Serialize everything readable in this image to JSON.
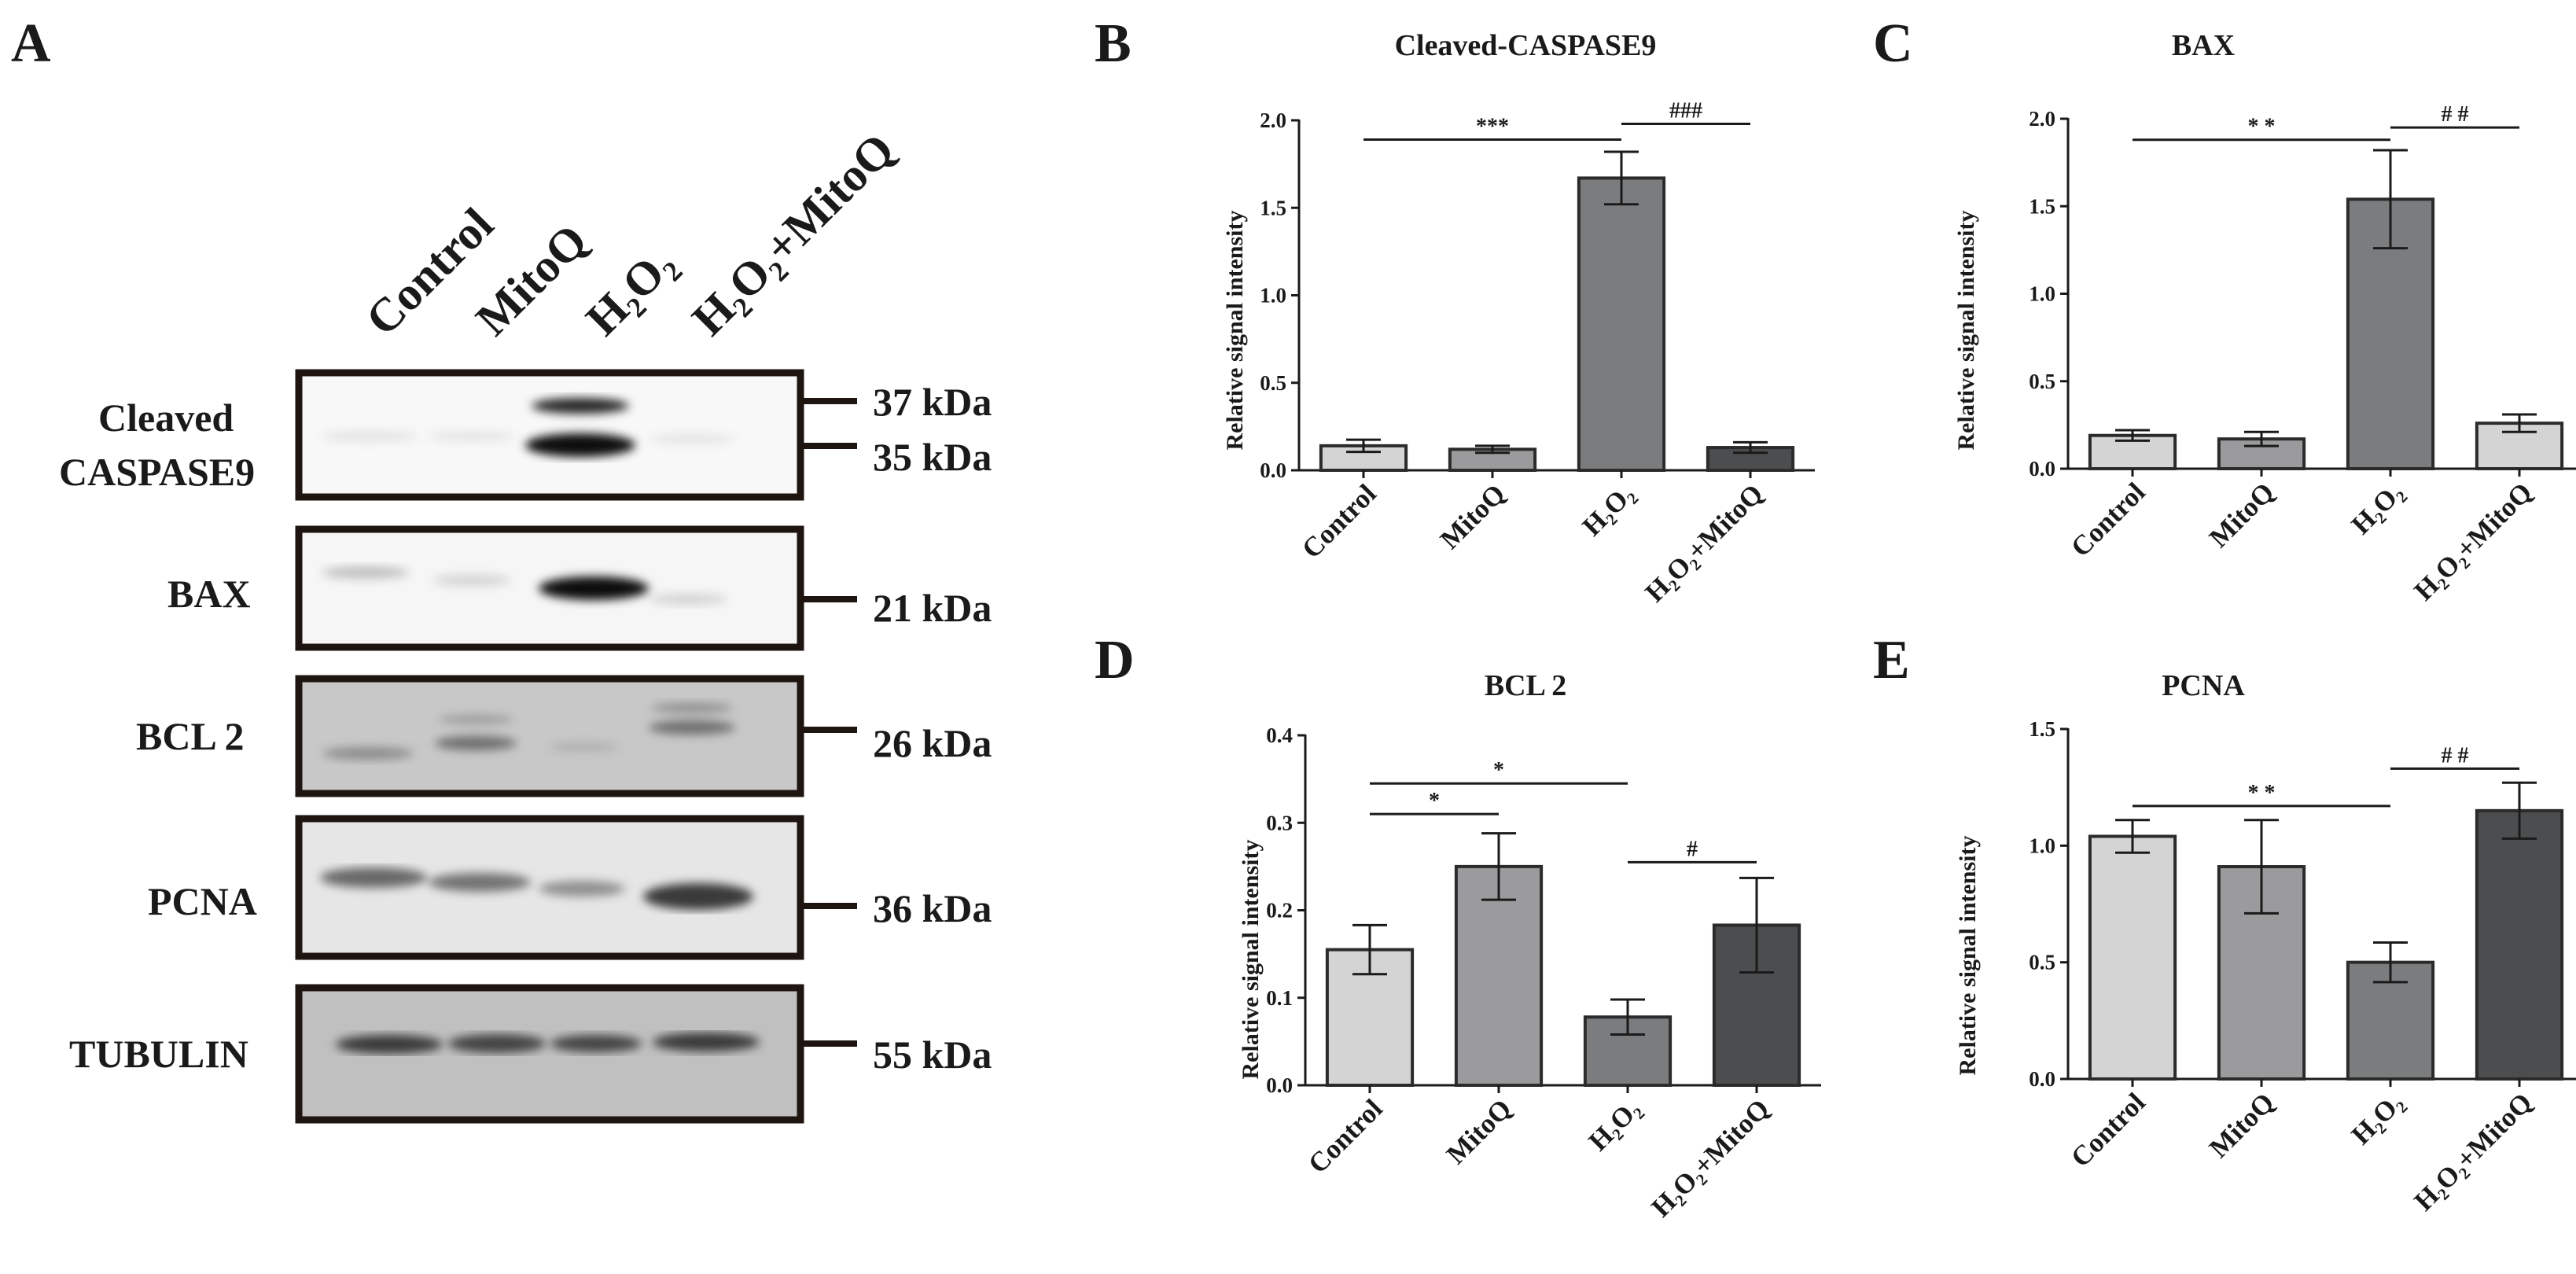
{
  "figure": {
    "panel_A": {
      "letter": "A",
      "lanes": [
        "Control",
        "MitoQ",
        "H₂O₂",
        "H₂O₂+MitoQ"
      ],
      "blots": [
        {
          "label": [
            "Cleaved",
            "CASPASE9"
          ],
          "markers": [
            "37 kDa",
            "35 kDa"
          ]
        },
        {
          "label": [
            "BAX"
          ],
          "markers": [
            "21 kDa"
          ]
        },
        {
          "label": [
            "BCL 2"
          ],
          "markers": [
            "26 kDa"
          ]
        },
        {
          "label": [
            "PCNA"
          ],
          "markers": [
            "36 kDa"
          ]
        },
        {
          "label": [
            "TUBULIN"
          ],
          "markers": [
            "55 kDa"
          ]
        }
      ]
    }
  },
  "chart_data": [
    {
      "panel": "B",
      "type": "bar",
      "title": "Cleaved-CASPASE9",
      "xlabel": "",
      "ylabel": "Relative signal intensity",
      "categories": [
        "Control",
        "MitoQ",
        "H₂O₂",
        "H₂O₂+MitoQ"
      ],
      "values": [
        0.14,
        0.12,
        1.67,
        0.13
      ],
      "errors": [
        0.035,
        0.02,
        0.15,
        0.03
      ],
      "colors": [
        "#d4d4d4",
        "#9b9b9d",
        "#7a7c7e",
        "#4b4d4f"
      ],
      "ylim": [
        0,
        2.0
      ],
      "yticks": [
        "0.0",
        "0.5",
        "1.0",
        "1.5",
        "2.0"
      ],
      "significance": [
        {
          "from": 0,
          "to": 2,
          "label": "***",
          "level": 1.89
        },
        {
          "from": 2,
          "to": 3,
          "label": "###",
          "level": 1.98
        }
      ]
    },
    {
      "panel": "C",
      "type": "bar",
      "title": "BAX",
      "xlabel": "",
      "ylabel": "Relative signal intensity",
      "categories": [
        "Control",
        "MitoQ",
        "H₂O₂",
        "H₂O₂+MitoQ"
      ],
      "values": [
        0.19,
        0.17,
        1.54,
        0.26
      ],
      "errors": [
        0.03,
        0.04,
        0.28,
        0.05
      ],
      "colors": [
        "#d4d4d4",
        "#9b9b9d",
        "#7a7c7e",
        "#d4d4d4"
      ],
      "ylim": [
        0,
        2.0
      ],
      "yticks": [
        "0.0",
        "0.5",
        "1.0",
        "1.5",
        "2.0"
      ],
      "significance": [
        {
          "from": 0,
          "to": 2,
          "label": "* *",
          "level": 1.88
        },
        {
          "from": 2,
          "to": 3,
          "label": "# #",
          "level": 1.95
        }
      ]
    },
    {
      "panel": "D",
      "type": "bar",
      "title": "BCL 2",
      "xlabel": "",
      "ylabel": "Relative signal intensity",
      "categories": [
        "Control",
        "MitoQ",
        "H₂O₂",
        "H₂O₂+MitoQ"
      ],
      "values": [
        0.155,
        0.25,
        0.078,
        0.183
      ],
      "errors": [
        0.028,
        0.038,
        0.02,
        0.054
      ],
      "colors": [
        "#d4d4d4",
        "#9b9b9d",
        "#7a7c7e",
        "#4b4d4f"
      ],
      "ylim": [
        0,
        0.4
      ],
      "yticks": [
        "0.0",
        "0.1",
        "0.2",
        "0.3",
        "0.4"
      ],
      "significance": [
        {
          "from": 0,
          "to": 1,
          "label": "*",
          "level": 0.31
        },
        {
          "from": 0,
          "to": 2,
          "label": "*",
          "level": 0.345
        },
        {
          "from": 2,
          "to": 3,
          "label": "#",
          "level": 0.255
        }
      ]
    },
    {
      "panel": "E",
      "type": "bar",
      "title": "PCNA",
      "xlabel": "",
      "ylabel": "Relative signal intensity",
      "categories": [
        "Control",
        "MitoQ",
        "H₂O₂",
        "H₂O₂+MitoQ"
      ],
      "values": [
        1.04,
        0.91,
        0.5,
        1.15
      ],
      "errors": [
        0.07,
        0.2,
        0.085,
        0.12
      ],
      "colors": [
        "#d4d4d4",
        "#9b9b9d",
        "#7a7c7e",
        "#4b4d4f"
      ],
      "ylim": [
        0,
        1.5
      ],
      "yticks": [
        "0.0",
        "0.5",
        "1.0",
        "1.5"
      ],
      "significance": [
        {
          "from": 0,
          "to": 2,
          "label": "* *",
          "level": 1.17
        },
        {
          "from": 2,
          "to": 3,
          "label": "# #",
          "level": 1.33
        }
      ]
    }
  ]
}
